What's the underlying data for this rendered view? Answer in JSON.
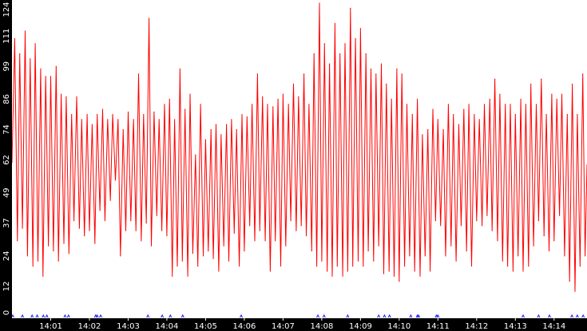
{
  "chart_data": {
    "type": "line",
    "title": "",
    "xlabel": "",
    "ylabel": "",
    "ylim": [
      0,
      124
    ],
    "y_ticks": [
      0,
      12,
      24,
      37,
      49,
      62,
      74,
      86,
      99,
      111,
      124
    ],
    "x_ticks": [
      "14:01",
      "14:02",
      "14:03",
      "14:04",
      "14:05",
      "14:06",
      "14:07",
      "14:08",
      "14:09",
      "14:10",
      "14:11",
      "14:12",
      "14:13",
      "14:14"
    ],
    "x_range_minutes": [
      0,
      14.85
    ],
    "series": [
      {
        "color": "#ff0000",
        "points": [
          [
            0.0,
            61
          ],
          [
            0.07,
            110
          ],
          [
            0.14,
            30
          ],
          [
            0.2,
            104
          ],
          [
            0.27,
            35
          ],
          [
            0.34,
            113
          ],
          [
            0.4,
            24
          ],
          [
            0.47,
            102
          ],
          [
            0.54,
            20
          ],
          [
            0.6,
            108
          ],
          [
            0.67,
            22
          ],
          [
            0.74,
            98
          ],
          [
            0.8,
            16
          ],
          [
            0.87,
            95
          ],
          [
            0.94,
            28
          ],
          [
            1.0,
            95
          ],
          [
            1.07,
            26
          ],
          [
            1.14,
            99
          ],
          [
            1.2,
            22
          ],
          [
            1.27,
            88
          ],
          [
            1.34,
            29
          ],
          [
            1.4,
            87
          ],
          [
            1.47,
            25
          ],
          [
            1.54,
            80
          ],
          [
            1.6,
            38
          ],
          [
            1.67,
            87
          ],
          [
            1.74,
            35
          ],
          [
            1.8,
            78
          ],
          [
            1.87,
            32
          ],
          [
            1.94,
            80
          ],
          [
            2.0,
            34
          ],
          [
            2.07,
            76
          ],
          [
            2.14,
            29
          ],
          [
            2.2,
            80
          ],
          [
            2.27,
            42
          ],
          [
            2.34,
            82
          ],
          [
            2.4,
            38
          ],
          [
            2.47,
            78
          ],
          [
            2.54,
            46
          ],
          [
            2.6,
            80
          ],
          [
            2.67,
            54
          ],
          [
            2.74,
            78
          ],
          [
            2.8,
            24
          ],
          [
            2.87,
            74
          ],
          [
            2.94,
            34
          ],
          [
            3.0,
            81
          ],
          [
            3.07,
            38
          ],
          [
            3.14,
            78
          ],
          [
            3.2,
            34
          ],
          [
            3.27,
            96
          ],
          [
            3.34,
            30
          ],
          [
            3.4,
            80
          ],
          [
            3.47,
            37
          ],
          [
            3.54,
            118
          ],
          [
            3.6,
            28
          ],
          [
            3.67,
            81
          ],
          [
            3.74,
            40
          ],
          [
            3.8,
            78
          ],
          [
            3.87,
            34
          ],
          [
            3.94,
            84
          ],
          [
            4.0,
            32
          ],
          [
            4.07,
            86
          ],
          [
            4.14,
            16
          ],
          [
            4.2,
            78
          ],
          [
            4.27,
            20
          ],
          [
            4.34,
            98
          ],
          [
            4.4,
            22
          ],
          [
            4.47,
            82
          ],
          [
            4.54,
            16
          ],
          [
            4.6,
            88
          ],
          [
            4.67,
            25
          ],
          [
            4.74,
            64
          ],
          [
            4.8,
            20
          ],
          [
            4.87,
            84
          ],
          [
            4.94,
            24
          ],
          [
            5.0,
            70
          ],
          [
            5.07,
            26
          ],
          [
            5.14,
            74
          ],
          [
            5.2,
            23
          ],
          [
            5.27,
            76
          ],
          [
            5.34,
            18
          ],
          [
            5.4,
            72
          ],
          [
            5.47,
            28
          ],
          [
            5.54,
            76
          ],
          [
            5.6,
            22
          ],
          [
            5.67,
            78
          ],
          [
            5.74,
            33
          ],
          [
            5.8,
            74
          ],
          [
            5.87,
            20
          ],
          [
            5.94,
            80
          ],
          [
            6.0,
            26
          ],
          [
            6.07,
            79
          ],
          [
            6.14,
            36
          ],
          [
            6.2,
            84
          ],
          [
            6.27,
            30
          ],
          [
            6.34,
            96
          ],
          [
            6.4,
            34
          ],
          [
            6.47,
            87
          ],
          [
            6.54,
            30
          ],
          [
            6.6,
            84
          ],
          [
            6.67,
            18
          ],
          [
            6.74,
            83
          ],
          [
            6.8,
            30
          ],
          [
            6.87,
            86
          ],
          [
            6.94,
            20
          ],
          [
            7.0,
            88
          ],
          [
            7.07,
            28
          ],
          [
            7.14,
            84
          ],
          [
            7.2,
            38
          ],
          [
            7.27,
            92
          ],
          [
            7.34,
            34
          ],
          [
            7.4,
            87
          ],
          [
            7.47,
            36
          ],
          [
            7.54,
            96
          ],
          [
            7.6,
            32
          ],
          [
            7.67,
            84
          ],
          [
            7.74,
            26
          ],
          [
            7.8,
            104
          ],
          [
            7.87,
            20
          ],
          [
            7.94,
            124
          ],
          [
            8.0,
            22
          ],
          [
            8.07,
            108
          ],
          [
            8.14,
            18
          ],
          [
            8.2,
            100
          ],
          [
            8.27,
            16
          ],
          [
            8.34,
            116
          ],
          [
            8.4,
            20
          ],
          [
            8.47,
            104
          ],
          [
            8.54,
            16
          ],
          [
            8.6,
            108
          ],
          [
            8.67,
            18
          ],
          [
            8.74,
            122
          ],
          [
            8.8,
            20
          ],
          [
            8.87,
            110
          ],
          [
            8.94,
            22
          ],
          [
            9.0,
            114
          ],
          [
            9.07,
            20
          ],
          [
            9.14,
            104
          ],
          [
            9.2,
            26
          ],
          [
            9.27,
            98
          ],
          [
            9.34,
            22
          ],
          [
            9.4,
            96
          ],
          [
            9.47,
            28
          ],
          [
            9.54,
            100
          ],
          [
            9.6,
            17
          ],
          [
            9.67,
            92
          ],
          [
            9.74,
            18
          ],
          [
            9.8,
            86
          ],
          [
            9.87,
            16
          ],
          [
            9.94,
            98
          ],
          [
            10.0,
            14
          ],
          [
            10.07,
            96
          ],
          [
            10.14,
            20
          ],
          [
            10.2,
            84
          ],
          [
            10.27,
            24
          ],
          [
            10.34,
            80
          ],
          [
            10.4,
            18
          ],
          [
            10.47,
            86
          ],
          [
            10.54,
            16
          ],
          [
            10.6,
            72
          ],
          [
            10.67,
            24
          ],
          [
            10.74,
            74
          ],
          [
            10.8,
            18
          ],
          [
            10.87,
            82
          ],
          [
            10.94,
            38
          ],
          [
            11.0,
            78
          ],
          [
            11.07,
            36
          ],
          [
            11.14,
            74
          ],
          [
            11.2,
            24
          ],
          [
            11.27,
            84
          ],
          [
            11.34,
            28
          ],
          [
            11.4,
            80
          ],
          [
            11.47,
            22
          ],
          [
            11.54,
            76
          ],
          [
            11.6,
            36
          ],
          [
            11.67,
            82
          ],
          [
            11.74,
            26
          ],
          [
            11.8,
            84
          ],
          [
            11.87,
            20
          ],
          [
            11.94,
            80
          ],
          [
            12.0,
            38
          ],
          [
            12.07,
            78
          ],
          [
            12.14,
            36
          ],
          [
            12.2,
            84
          ],
          [
            12.27,
            40
          ],
          [
            12.34,
            86
          ],
          [
            12.4,
            34
          ],
          [
            12.47,
            94
          ],
          [
            12.54,
            30
          ],
          [
            12.6,
            88
          ],
          [
            12.67,
            22
          ],
          [
            12.74,
            84
          ],
          [
            12.8,
            20
          ],
          [
            12.87,
            84
          ],
          [
            12.94,
            18
          ],
          [
            13.0,
            80
          ],
          [
            13.07,
            24
          ],
          [
            13.14,
            86
          ],
          [
            13.2,
            18
          ],
          [
            13.27,
            84
          ],
          [
            13.34,
            20
          ],
          [
            13.4,
            92
          ],
          [
            13.47,
            28
          ],
          [
            13.54,
            84
          ],
          [
            13.6,
            38
          ],
          [
            13.67,
            94
          ],
          [
            13.74,
            32
          ],
          [
            13.8,
            80
          ],
          [
            13.87,
            26
          ],
          [
            13.94,
            88
          ],
          [
            14.0,
            30
          ],
          [
            14.07,
            86
          ],
          [
            14.14,
            40
          ],
          [
            14.2,
            88
          ],
          [
            14.27,
            24
          ],
          [
            14.34,
            80
          ],
          [
            14.4,
            14
          ],
          [
            14.47,
            92
          ],
          [
            14.54,
            10
          ],
          [
            14.6,
            80
          ],
          [
            14.67,
            20
          ],
          [
            14.74,
            96
          ],
          [
            14.8,
            24
          ],
          [
            14.85,
            60
          ]
        ]
      }
    ],
    "markers": [
      0.02,
      0.27,
      0.52,
      0.65,
      0.81,
      0.9,
      1.37,
      1.46,
      2.16,
      2.2,
      2.29,
      3.51,
      3.88,
      4.09,
      4.41,
      5.92,
      7.9,
      8.06,
      8.67,
      9.47,
      9.62,
      9.75,
      10.3,
      10.47,
      10.5,
      10.96,
      11.0,
      13.2,
      13.6,
      13.88,
      14.46,
      14.6,
      14.75
    ],
    "colors": {
      "line": "#ff0000",
      "axis_band": "#000000",
      "tick_text": "#ffffff",
      "marker": "#1a1aff",
      "background": "#ffffff"
    }
  }
}
